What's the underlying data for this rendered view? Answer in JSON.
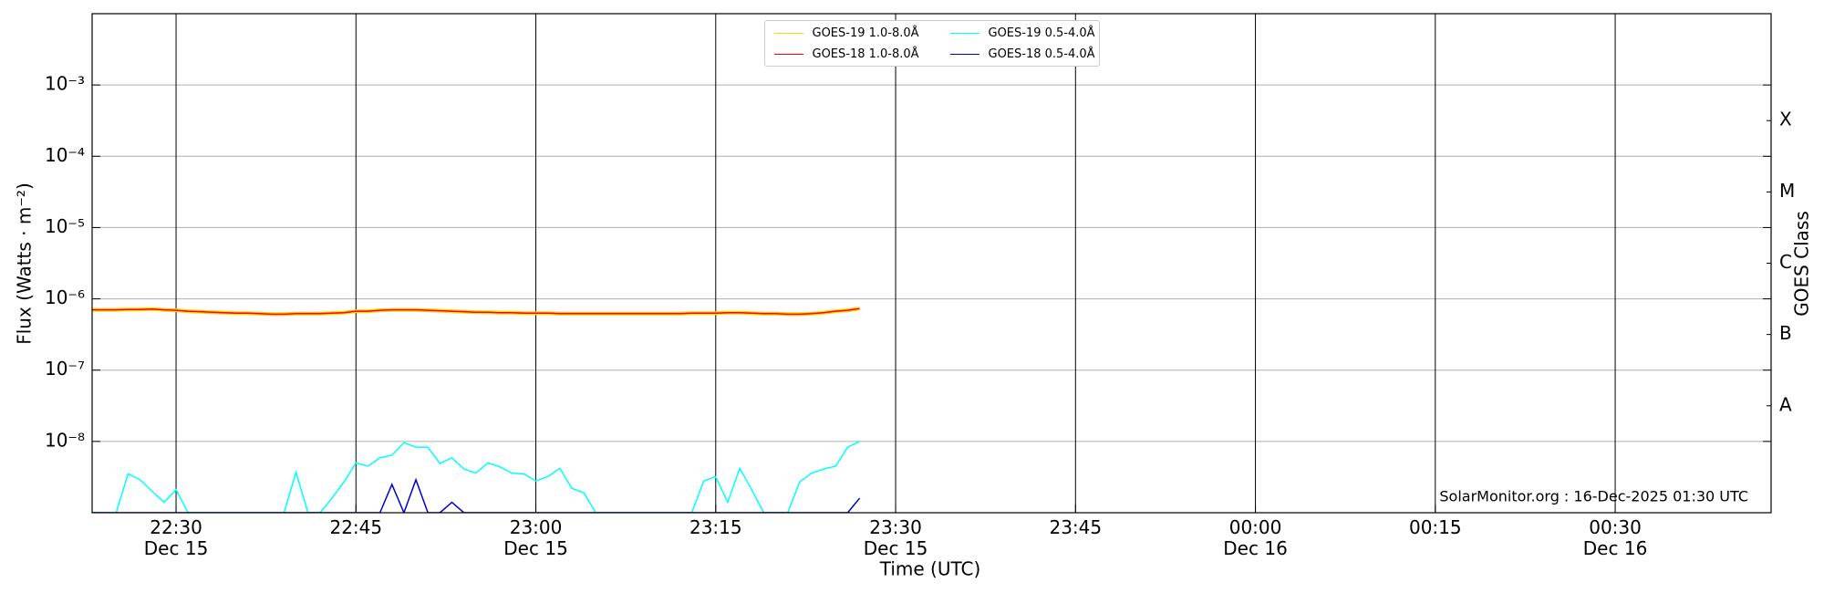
{
  "chart_data": {
    "type": "line",
    "y_label": "Flux (Watts · m⁻²)",
    "x_label": "Time (UTC)",
    "y2_label": "GOES Class",
    "annotation": "SolarMonitor.org : 16-Dec-2025 01:30 UTC",
    "log_scale": true,
    "grid": true,
    "legend_position": "upper center",
    "xlim": [
      "Dec 15 22:23",
      "Dec 16 00:43"
    ],
    "xticks": [
      {
        "value": "Dec 15 22:30",
        "label": "22:30\nDec 15"
      },
      {
        "value": "Dec 15 22:45",
        "label": "22:45"
      },
      {
        "value": "Dec 15 23:00",
        "label": "23:00\nDec 15"
      },
      {
        "value": "Dec 15 23:15",
        "label": "23:15"
      },
      {
        "value": "Dec 15 23:30",
        "label": "23:30\nDec 15"
      },
      {
        "value": "Dec 15 23:45",
        "label": "23:45"
      },
      {
        "value": "Dec 16 00:00",
        "label": "00:00\nDec 16"
      },
      {
        "value": "Dec 16 00:15",
        "label": "00:15"
      },
      {
        "value": "Dec 16 00:30",
        "label": "00:30\nDec 16"
      }
    ],
    "ylim": [
      1e-09,
      0.01
    ],
    "yticks": [
      {
        "value": 0.001,
        "label": "10⁻³"
      },
      {
        "value": 0.0001,
        "label": "10⁻⁴"
      },
      {
        "value": 1e-05,
        "label": "10⁻⁵"
      },
      {
        "value": 1e-06,
        "label": "10⁻⁶"
      },
      {
        "value": 1e-07,
        "label": "10⁻⁷"
      },
      {
        "value": 1e-08,
        "label": "10⁻⁸"
      }
    ],
    "y2lim": [
      1e-09,
      0.01
    ],
    "y2ticks": [
      {
        "value": 0.00031623,
        "label": "X"
      },
      {
        "value": 3.1623e-05,
        "label": "M"
      },
      {
        "value": 3.1623e-06,
        "label": "C"
      },
      {
        "value": 3.1623e-07,
        "label": "B"
      },
      {
        "value": 3.1623e-08,
        "label": "A"
      }
    ],
    "x": [
      "Dec 15 22:23",
      "Dec 15 22:24",
      "Dec 15 22:25",
      "Dec 15 22:26",
      "Dec 15 22:27",
      "Dec 15 22:28",
      "Dec 15 22:29",
      "Dec 15 22:30",
      "Dec 15 22:31",
      "Dec 15 22:32",
      "Dec 15 22:33",
      "Dec 15 22:34",
      "Dec 15 22:35",
      "Dec 15 22:36",
      "Dec 15 22:37",
      "Dec 15 22:38",
      "Dec 15 22:39",
      "Dec 15 22:40",
      "Dec 15 22:41",
      "Dec 15 22:42",
      "Dec 15 22:43",
      "Dec 15 22:44",
      "Dec 15 22:45",
      "Dec 15 22:46",
      "Dec 15 22:47",
      "Dec 15 22:48",
      "Dec 15 22:49",
      "Dec 15 22:50",
      "Dec 15 22:51",
      "Dec 15 22:52",
      "Dec 15 22:53",
      "Dec 15 22:54",
      "Dec 15 22:55",
      "Dec 15 22:56",
      "Dec 15 22:57",
      "Dec 15 22:58",
      "Dec 15 22:59",
      "Dec 15 23:00",
      "Dec 15 23:01",
      "Dec 15 23:02",
      "Dec 15 23:03",
      "Dec 15 23:04",
      "Dec 15 23:05",
      "Dec 15 23:06",
      "Dec 15 23:07",
      "Dec 15 23:08",
      "Dec 15 23:09",
      "Dec 15 23:10",
      "Dec 15 23:11",
      "Dec 15 23:12",
      "Dec 15 23:13",
      "Dec 15 23:14",
      "Dec 15 23:15",
      "Dec 15 23:16",
      "Dec 15 23:17",
      "Dec 15 23:18",
      "Dec 15 23:19",
      "Dec 15 23:20",
      "Dec 15 23:21",
      "Dec 15 23:22",
      "Dec 15 23:23",
      "Dec 15 23:24",
      "Dec 15 23:25",
      "Dec 15 23:26",
      "Dec 15 23:27"
    ],
    "series": [
      {
        "name": "GOES-19 1.0-8.0Å",
        "color": "#ffd700",
        "values": [
          7e-07,
          7e-07,
          7e-07,
          7.1e-07,
          7.1e-07,
          7.2e-07,
          7e-07,
          6.9e-07,
          6.7e-07,
          6.6e-07,
          6.5e-07,
          6.4e-07,
          6.3e-07,
          6.3e-07,
          6.2e-07,
          6.1e-07,
          6.1e-07,
          6.2e-07,
          6.2e-07,
          6.2e-07,
          6.3e-07,
          6.4e-07,
          6.7e-07,
          6.7e-07,
          6.9e-07,
          7e-07,
          7e-07,
          7e-07,
          6.9e-07,
          6.8e-07,
          6.7e-07,
          6.6e-07,
          6.5e-07,
          6.5e-07,
          6.4e-07,
          6.4e-07,
          6.3e-07,
          6.3e-07,
          6.3e-07,
          6.2e-07,
          6.2e-07,
          6.2e-07,
          6.2e-07,
          6.2e-07,
          6.2e-07,
          6.2e-07,
          6.2e-07,
          6.2e-07,
          6.2e-07,
          6.2e-07,
          6.3e-07,
          6.3e-07,
          6.3e-07,
          6.4e-07,
          6.4e-07,
          6.3e-07,
          6.2e-07,
          6.2e-07,
          6.1e-07,
          6.1e-07,
          6.2e-07,
          6.4e-07,
          6.7e-07,
          6.9e-07,
          7.3e-07
        ]
      },
      {
        "name": "GOES-18 1.0-8.0Å",
        "color": "#ff0000",
        "values": [
          7e-07,
          7e-07,
          7e-07,
          7.1e-07,
          7.1e-07,
          7.2e-07,
          7e-07,
          6.9e-07,
          6.7e-07,
          6.6e-07,
          6.5e-07,
          6.4e-07,
          6.3e-07,
          6.3e-07,
          6.2e-07,
          6.1e-07,
          6.1e-07,
          6.2e-07,
          6.2e-07,
          6.2e-07,
          6.3e-07,
          6.4e-07,
          6.7e-07,
          6.7e-07,
          6.9e-07,
          7e-07,
          7e-07,
          7e-07,
          6.9e-07,
          6.8e-07,
          6.7e-07,
          6.6e-07,
          6.5e-07,
          6.5e-07,
          6.4e-07,
          6.4e-07,
          6.3e-07,
          6.3e-07,
          6.3e-07,
          6.2e-07,
          6.2e-07,
          6.2e-07,
          6.2e-07,
          6.2e-07,
          6.2e-07,
          6.2e-07,
          6.2e-07,
          6.2e-07,
          6.2e-07,
          6.2e-07,
          6.3e-07,
          6.3e-07,
          6.3e-07,
          6.4e-07,
          6.4e-07,
          6.3e-07,
          6.2e-07,
          6.2e-07,
          6.1e-07,
          6.1e-07,
          6.2e-07,
          6.4e-07,
          6.7e-07,
          6.9e-07,
          7.3e-07
        ]
      },
      {
        "name": "GOES-19 0.5-4.0Å",
        "color": "#00ffff",
        "values": [
          1e-09,
          1e-09,
          1e-09,
          3.5e-09,
          2.9e-09,
          2e-09,
          1.4e-09,
          2.1e-09,
          1e-09,
          1e-09,
          1e-09,
          1e-09,
          1e-09,
          1e-09,
          1e-09,
          1e-09,
          1e-09,
          3.7e-09,
          1e-09,
          1e-09,
          1.6e-09,
          2.7e-09,
          5e-09,
          4.5e-09,
          5.9e-09,
          6.4e-09,
          9.6e-09,
          8.3e-09,
          8.3e-09,
          4.9e-09,
          5.9e-09,
          4.1e-09,
          3.6e-09,
          5e-09,
          4.4e-09,
          3.6e-09,
          3.5e-09,
          2.8e-09,
          3.2e-09,
          4.2e-09,
          2.2e-09,
          1.9e-09,
          1e-09,
          1e-09,
          1e-09,
          1e-09,
          1e-09,
          1e-09,
          1e-09,
          1e-09,
          1e-09,
          2.8e-09,
          3.2e-09,
          1.4e-09,
          4.2e-09,
          2.1e-09,
          1e-09,
          1e-09,
          1e-09,
          2.7e-09,
          3.6e-09,
          4.1e-09,
          4.5e-09,
          8.3e-09,
          1e-08
        ]
      },
      {
        "name": "GOES-18 0.5-4.0Å",
        "color": "#0000cd",
        "values": [
          1e-09,
          1e-09,
          1e-09,
          1e-09,
          1e-09,
          1e-09,
          1e-09,
          1e-09,
          1e-09,
          1e-09,
          1e-09,
          1e-09,
          1e-09,
          1e-09,
          1e-09,
          1e-09,
          1e-09,
          1e-09,
          1e-09,
          1e-09,
          1e-09,
          1e-09,
          1e-09,
          1e-09,
          1e-09,
          2.5e-09,
          1e-09,
          2.9e-09,
          1e-09,
          1e-09,
          1.4e-09,
          1e-09,
          1e-09,
          1e-09,
          1e-09,
          1e-09,
          1e-09,
          1e-09,
          1e-09,
          1e-09,
          1e-09,
          1e-09,
          1e-09,
          1e-09,
          1e-09,
          1e-09,
          1e-09,
          1e-09,
          1e-09,
          1e-09,
          1e-09,
          1e-09,
          1e-09,
          1e-09,
          1e-09,
          1e-09,
          1e-09,
          1e-09,
          1e-09,
          1e-09,
          1e-09,
          1e-09,
          1e-09,
          1e-09,
          1.6e-09
        ]
      }
    ]
  }
}
